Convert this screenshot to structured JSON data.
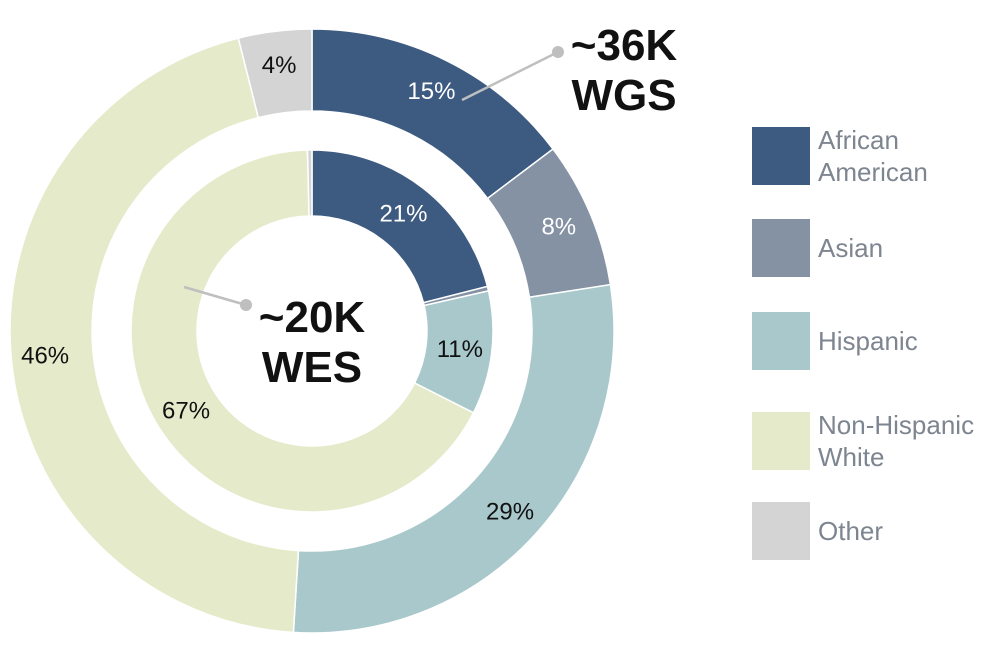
{
  "chart_data": {
    "type": "pie",
    "variant": "nested-donut",
    "categories": [
      "African American",
      "Asian",
      "Hispanic",
      "Non-Hispanic White",
      "Other"
    ],
    "colors": {
      "African American": "#3d5a80",
      "Asian": "#8592a4",
      "Hispanic": "#a8c8cb",
      "Non-Hispanic White": "#e5ebca",
      "Other": "#d4d4d4"
    },
    "series": [
      {
        "ring": "outer",
        "callout": [
          "~36K",
          "WGS"
        ],
        "slices": [
          {
            "category": "African American",
            "value": 15,
            "label": "15%",
            "label_color": "#ffffff"
          },
          {
            "category": "Asian",
            "value": 8,
            "label": "8%",
            "label_color": "#ffffff"
          },
          {
            "category": "Hispanic",
            "value": 29,
            "label": "29%",
            "label_color": "#111111"
          },
          {
            "category": "Non-Hispanic White",
            "value": 46,
            "label": "46%",
            "label_color": "#111111"
          },
          {
            "category": "Other",
            "value": 4,
            "label": "4%",
            "label_color": "#111111"
          }
        ]
      },
      {
        "ring": "inner",
        "callout": [
          "~20K",
          "WES"
        ],
        "slices": [
          {
            "category": "African American",
            "value": 21,
            "label": "21%",
            "label_color": "#ffffff"
          },
          {
            "category": "Asian",
            "value": 0.4,
            "label": "",
            "label_color": "#ffffff"
          },
          {
            "category": "Hispanic",
            "value": 11,
            "label": "11%",
            "label_color": "#111111"
          },
          {
            "category": "Non-Hispanic White",
            "value": 67,
            "label": "67%",
            "label_color": "#111111"
          },
          {
            "category": "Other",
            "value": 0.4,
            "label": "",
            "label_color": "#111111"
          }
        ]
      }
    ],
    "legend": {
      "placement": "right",
      "entries": [
        "African American",
        "Asian",
        "Hispanic",
        "Non-Hispanic White",
        "Other"
      ],
      "labels": [
        "African\nAmerican",
        "Asian",
        "Hispanic",
        "Non-Hispanic\nWhite",
        "Other"
      ]
    }
  }
}
